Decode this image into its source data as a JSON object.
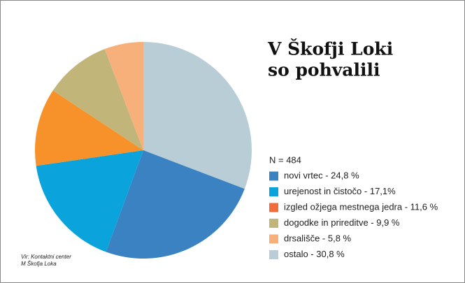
{
  "chart_data": {
    "type": "pie",
    "title": [
      "V Škofji Loki",
      "so pohvalili"
    ],
    "subtitle": "N = 484",
    "source": [
      "Vir: Kontaktni center",
      "M Škofja Loka"
    ],
    "categories": [
      "novi vrtec - 24,8 %",
      "urejenost in čistočo - 17,1%",
      "izgled ožjega mestnega jedra - 11,6 %",
      "dogodke in prireditve - 9,9 %",
      "drsališče - 5,8 %",
      "ostalo - 30,8 %"
    ],
    "values": [
      24.8,
      17.1,
      11.6,
      9.9,
      5.8,
      30.8
    ],
    "colors": [
      "#3a82c2",
      "#0aa3dc",
      "#f7912a",
      "#c2b57a",
      "#f8b07a",
      "#b9cdd6"
    ],
    "legend_colors": [
      "#3a82c2",
      "#0aa3dc",
      "#f26b3a",
      "#c2b57a",
      "#f8b07a",
      "#b9cdd6"
    ]
  }
}
